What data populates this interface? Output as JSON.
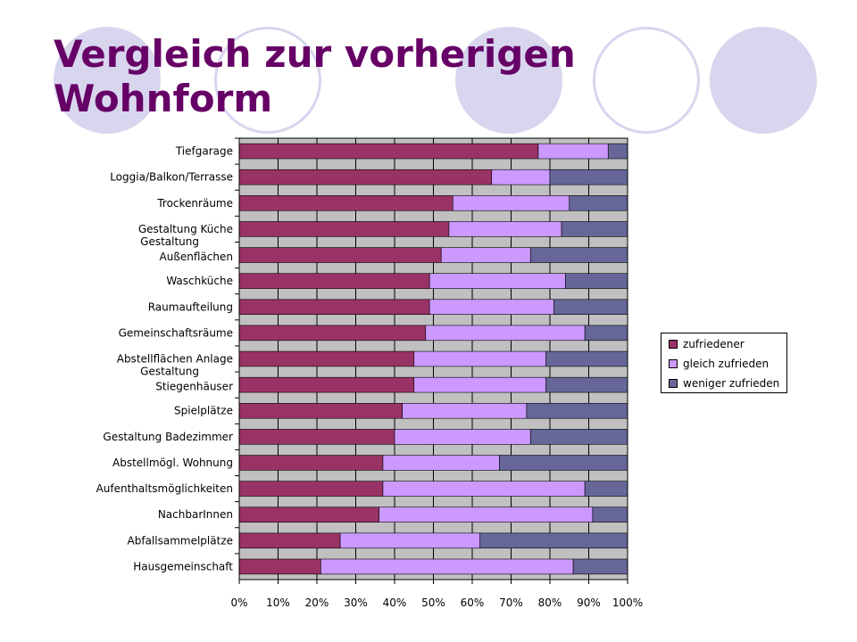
{
  "slide": {
    "title": "Vergleich zur vorherigen Wohnform"
  },
  "chart_data": {
    "type": "bar",
    "orientation": "horizontal",
    "stacked": "percent",
    "title": "",
    "xlabel": "",
    "ylabel": "",
    "xlim": [
      0,
      100
    ],
    "x_ticks": [
      "0%",
      "10%",
      "20%",
      "30%",
      "40%",
      "50%",
      "60%",
      "70%",
      "80%",
      "90%",
      "100%"
    ],
    "grid": true,
    "legend_position": "right",
    "categories": [
      "Tiefgarage",
      "Loggia/Balkon/Terrasse",
      "Trockenräume",
      "Gestaltung Küche",
      "Gestaltung Außenflächen",
      "Waschküche",
      "Raumaufteilung",
      "Gemeinschaftsräume",
      "Abstellflächen Anlage",
      "Gestaltung Stiegenhäuser",
      "Spielplätze",
      "Gestaltung Badezimmer",
      "Abstellmögl. Wohnung",
      "Aufenthaltsmöglichkeiten",
      "NachbarInnen",
      "Abfallsammelplätze",
      "Hausgemeinschaft"
    ],
    "series": [
      {
        "name": "zufriedener",
        "color": "#993366",
        "values": [
          77,
          65,
          55,
          54,
          52,
          49,
          49,
          48,
          45,
          45,
          42,
          40,
          37,
          37,
          36,
          26,
          21
        ]
      },
      {
        "name": "gleich zufrieden",
        "color": "#cc99ff",
        "values": [
          18,
          15,
          30,
          29,
          23,
          35,
          32,
          41,
          34,
          34,
          32,
          35,
          30,
          52,
          55,
          36,
          65
        ]
      },
      {
        "name": "weniger zufrieden",
        "color": "#666699",
        "values": [
          5,
          20,
          15,
          17,
          25,
          16,
          19,
          11,
          21,
          21,
          26,
          25,
          33,
          11,
          9,
          38,
          14
        ]
      }
    ]
  }
}
